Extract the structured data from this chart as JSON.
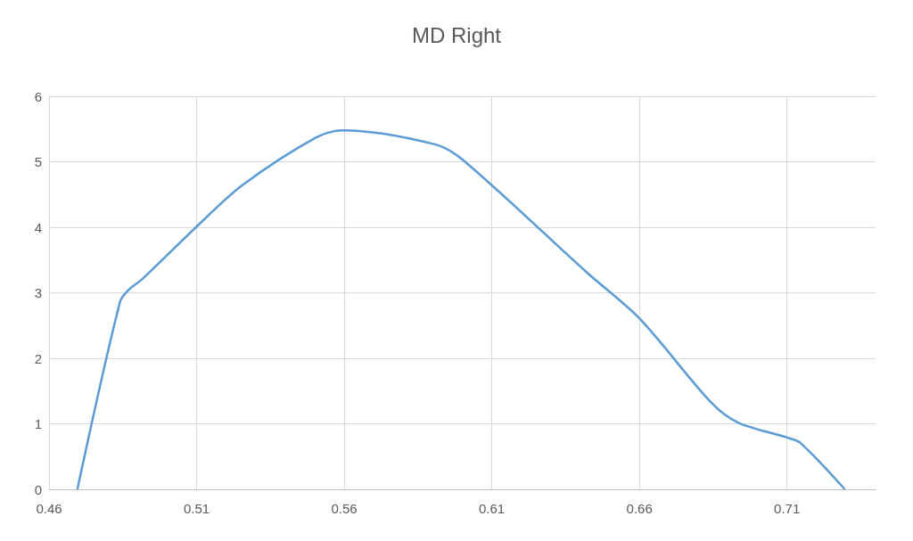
{
  "chart_data": {
    "type": "line",
    "title": "MD Right",
    "x": [
      0.4696,
      0.4841,
      0.4871,
      0.4916,
      0.51,
      0.5254,
      0.5504,
      0.5594,
      0.5904,
      0.6004,
      0.6422,
      0.66,
      0.6844,
      0.6934,
      0.71,
      0.7145,
      0.7296
    ],
    "series": [
      {
        "color": "#5b9bd5",
        "values": [
          0,
          2.87,
          3.05,
          3.21,
          4.01,
          4.64,
          5.37,
          5.48,
          5.27,
          5.02,
          3.31,
          2.61,
          1.32,
          1.02,
          0.79,
          0.71,
          0
        ]
      }
    ],
    "xlim": [
      0.46,
      0.74
    ],
    "xticks": [
      0.46,
      0.51,
      0.56,
      0.61,
      0.66,
      0.71
    ],
    "ylim": [
      0,
      6
    ],
    "yticks": [
      0,
      1,
      2,
      3,
      4,
      5,
      6
    ],
    "grid": true,
    "marker": "none",
    "line_style": "solid"
  }
}
